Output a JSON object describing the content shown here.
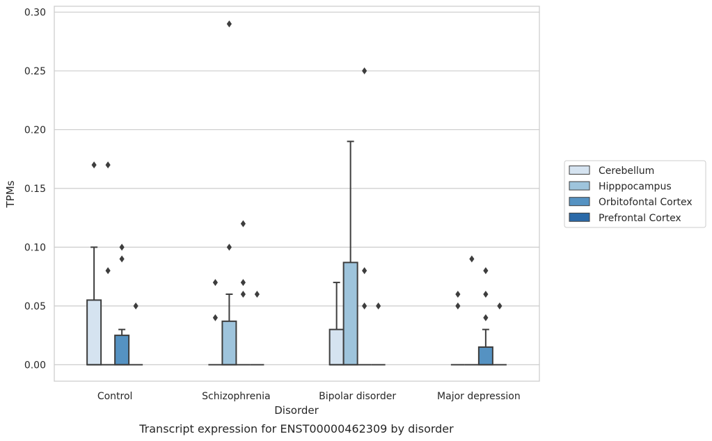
{
  "chart_data": {
    "type": "box",
    "title": "",
    "caption": "Transcript expression for ENST00000462309 by disorder",
    "xlabel": "Disorder",
    "ylabel": "TPMs",
    "ylim": [
      -0.014,
      0.305
    ],
    "yticks": [
      0.0,
      0.05,
      0.1,
      0.15,
      0.2,
      0.25,
      0.3
    ],
    "ytick_labels": [
      "0.00",
      "0.05",
      "0.10",
      "0.15",
      "0.20",
      "0.25",
      "0.30"
    ],
    "grid": "horizontal",
    "legend_position": "right",
    "categories": [
      "Control",
      "Schizophrenia",
      "Bipolar disorder",
      "Major depression"
    ],
    "series": [
      {
        "name": "Cerebellum",
        "color": "#d5e3f0",
        "boxes": [
          {
            "q1": 0,
            "median": 0,
            "q3": 0.055,
            "whisker_low": 0,
            "whisker_high": 0.1,
            "outliers": [
              0.17
            ]
          },
          {
            "q1": 0,
            "median": 0,
            "q3": 0,
            "whisker_low": 0,
            "whisker_high": 0,
            "outliers": [
              0.04,
              0.07
            ]
          },
          {
            "q1": 0,
            "median": 0,
            "q3": 0.03,
            "whisker_low": 0,
            "whisker_high": 0.07,
            "outliers": []
          },
          {
            "q1": 0,
            "median": 0,
            "q3": 0,
            "whisker_low": 0,
            "whisker_high": 0,
            "outliers": [
              0.05,
              0.06
            ]
          }
        ]
      },
      {
        "name": "Hipppocampus",
        "color": "#9ec4dc",
        "boxes": [
          {
            "q1": 0,
            "median": 0,
            "q3": 0,
            "whisker_low": 0,
            "whisker_high": 0,
            "outliers": [
              0.08,
              0.17
            ]
          },
          {
            "q1": 0,
            "median": 0,
            "q3": 0.037,
            "whisker_low": 0,
            "whisker_high": 0.06,
            "outliers": [
              0.1,
              0.29
            ]
          },
          {
            "q1": 0,
            "median": 0,
            "q3": 0.087,
            "whisker_low": 0,
            "whisker_high": 0.19,
            "outliers": []
          },
          {
            "q1": 0,
            "median": 0,
            "q3": 0,
            "whisker_low": 0,
            "whisker_high": 0,
            "outliers": [
              0.09
            ]
          }
        ]
      },
      {
        "name": "Orbitofontal Cortex",
        "color": "#5592c2",
        "boxes": [
          {
            "q1": 0,
            "median": 0,
            "q3": 0.025,
            "whisker_low": 0,
            "whisker_high": 0.03,
            "outliers": [
              0.09,
              0.1
            ]
          },
          {
            "q1": 0,
            "median": 0,
            "q3": 0,
            "whisker_low": 0,
            "whisker_high": 0,
            "outliers": [
              0.06,
              0.07,
              0.12
            ]
          },
          {
            "q1": 0,
            "median": 0,
            "q3": 0,
            "whisker_low": 0,
            "whisker_high": 0,
            "outliers": [
              0.05,
              0.08,
              0.25
            ]
          },
          {
            "q1": 0,
            "median": 0,
            "q3": 0.015,
            "whisker_low": 0,
            "whisker_high": 0.03,
            "outliers": [
              0.04,
              0.06,
              0.08
            ]
          }
        ]
      },
      {
        "name": "Prefrontal Cortex",
        "color": "#2a69a8",
        "boxes": [
          {
            "q1": 0,
            "median": 0,
            "q3": 0,
            "whisker_low": 0,
            "whisker_high": 0,
            "outliers": [
              0.05
            ]
          },
          {
            "q1": 0,
            "median": 0,
            "q3": 0,
            "whisker_low": 0,
            "whisker_high": 0,
            "outliers": [
              0.06
            ]
          },
          {
            "q1": 0,
            "median": 0,
            "q3": 0,
            "whisker_low": 0,
            "whisker_high": 0,
            "outliers": [
              0.05
            ]
          },
          {
            "q1": 0,
            "median": 0,
            "q3": 0,
            "whisker_low": 0,
            "whisker_high": 0,
            "outliers": [
              0.05
            ]
          }
        ]
      }
    ]
  }
}
